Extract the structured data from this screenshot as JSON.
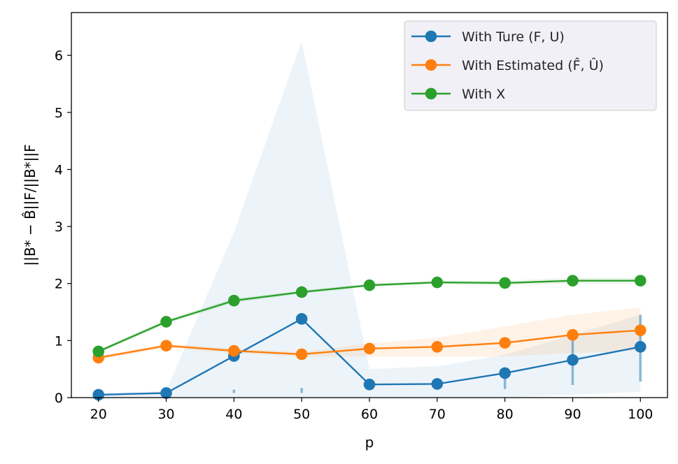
{
  "chart_data": {
    "type": "line",
    "x": [
      20,
      30,
      40,
      50,
      60,
      70,
      80,
      90,
      100
    ],
    "xlabel": "p",
    "ylabel": "||B* − B̂||F/||B*||F",
    "xlim": [
      16,
      104
    ],
    "ylim": [
      0,
      6.75
    ],
    "xticks": [
      20,
      30,
      40,
      50,
      60,
      70,
      80,
      90,
      100
    ],
    "yticks": [
      0,
      1,
      2,
      3,
      4,
      5,
      6
    ],
    "grid": false,
    "legend_position": "top-right",
    "series": [
      {
        "name": "With Ture (F, U)",
        "color": "#1f77b4",
        "values": [
          0.05,
          0.08,
          0.73,
          1.38,
          0.23,
          0.24,
          0.43,
          0.66,
          0.89
        ],
        "band_upper": [
          0.08,
          0.12,
          2.9,
          6.25,
          0.5,
          0.55,
          0.75,
          1.1,
          1.45
        ],
        "band_lower": [
          0.0,
          0.0,
          0.0,
          0.0,
          0.0,
          0.0,
          0.0,
          0.05,
          0.1
        ],
        "error_low": [
          0.05,
          0.08,
          0.08,
          0.08,
          0.23,
          0.24,
          0.15,
          0.22,
          0.28
        ],
        "error_high": [
          0.05,
          0.08,
          0.14,
          0.17,
          0.23,
          0.24,
          0.43,
          1.1,
          1.45
        ]
      },
      {
        "name": "With Estimated (F̂, Û)",
        "color": "#ff7f0e",
        "values": [
          0.7,
          0.91,
          0.82,
          0.76,
          0.86,
          0.89,
          0.96,
          1.1,
          1.18
        ],
        "band_upper": [
          0.72,
          0.95,
          0.86,
          0.8,
          0.95,
          1.05,
          1.25,
          1.45,
          1.58
        ],
        "band_lower": [
          0.66,
          0.87,
          0.78,
          0.72,
          0.72,
          0.72,
          0.72,
          0.78,
          0.82
        ]
      },
      {
        "name": "With X",
        "color": "#2ca02c",
        "values": [
          0.81,
          1.33,
          1.7,
          1.85,
          1.97,
          2.02,
          2.01,
          2.05,
          2.05
        ],
        "band_upper": [
          0.84,
          1.37,
          1.74,
          1.88,
          2.0,
          2.05,
          2.05,
          2.1,
          2.1
        ],
        "band_lower": [
          0.78,
          1.29,
          1.66,
          1.82,
          1.94,
          1.99,
          1.97,
          2.0,
          2.0
        ]
      }
    ]
  }
}
